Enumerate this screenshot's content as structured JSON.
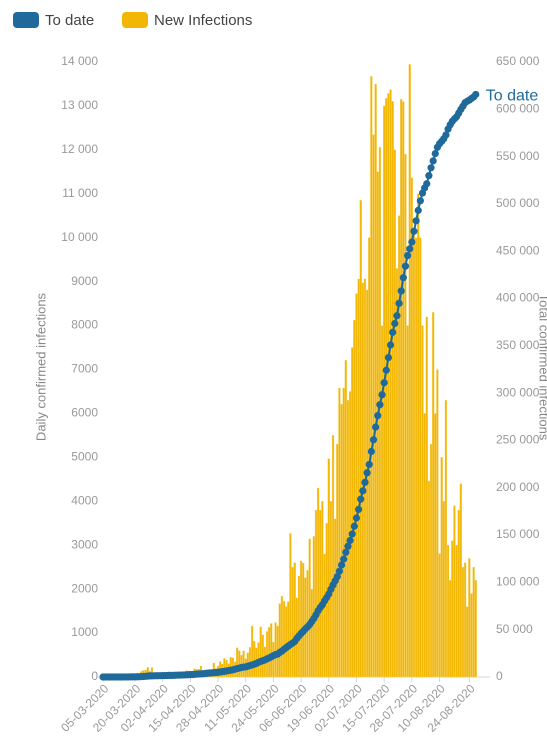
{
  "chart_data": {
    "type": "bar",
    "y_label": "Daily confirmed infections",
    "y2_label": "Total confirmed infections",
    "categories": [
      "05-03-2020",
      null,
      null,
      null,
      null,
      null,
      null,
      null,
      null,
      null,
      null,
      null,
      null,
      null,
      null,
      "20-03-2020",
      null,
      null,
      null,
      null,
      null,
      null,
      null,
      null,
      null,
      null,
      null,
      null,
      "02-04-2020",
      null,
      null,
      null,
      null,
      null,
      null,
      null,
      null,
      null,
      null,
      null,
      null,
      "15-04-2020",
      null,
      null,
      null,
      null,
      null,
      null,
      null,
      null,
      null,
      null,
      null,
      null,
      "28-04-2020",
      null,
      null,
      null,
      null,
      null,
      null,
      null,
      null,
      null,
      null,
      null,
      null,
      "11-05-2020",
      null,
      null,
      null,
      null,
      null,
      null,
      null,
      null,
      null,
      null,
      null,
      null,
      "24-05-2020",
      null,
      null,
      null,
      null,
      null,
      null,
      null,
      null,
      null,
      null,
      null,
      null,
      "06-06-2020",
      null,
      null,
      null,
      null,
      null,
      null,
      null,
      null,
      null,
      null,
      null,
      null,
      "19-06-2020",
      null,
      null,
      null,
      null,
      null,
      null,
      null,
      null,
      null,
      null,
      null,
      null,
      "02-07-2020",
      null,
      null,
      null,
      null,
      null,
      null,
      null,
      null,
      null,
      null,
      null,
      null,
      "15-07-2020",
      null,
      null,
      null,
      null,
      null,
      null,
      null,
      null,
      null,
      null,
      null,
      null,
      "28-07-2020",
      null,
      null,
      null,
      null,
      null,
      null,
      null,
      null,
      null,
      null,
      null,
      null,
      "10-08-2020",
      null,
      null,
      null,
      null,
      null,
      null,
      null,
      null,
      null,
      null,
      null,
      null,
      null,
      "24-08-2020",
      null,
      null,
      null
    ],
    "series": [
      {
        "name": "To date",
        "type": "line",
        "axis": "y2",
        "color": "#1f6a9a",
        "values": [
          1,
          1,
          2,
          3,
          7,
          7,
          13,
          17,
          24,
          38,
          51,
          62,
          85,
          116,
          150,
          202,
          240,
          274,
          402,
          554,
          709,
          927,
          1170,
          1187,
          1280,
          1326,
          1353,
          1380,
          1462,
          1505,
          1585,
          1655,
          1686,
          1749,
          1845,
          1934,
          2003,
          2028,
          2173,
          2272,
          2415,
          2506,
          2605,
          2783,
          3034,
          3158,
          3300,
          3465,
          3635,
          3953,
          4220,
          4361,
          4546,
          4793,
          4996,
          5350,
          5647,
          5951,
          6336,
          6783,
          7220,
          7572,
          8232,
          8895,
          9420,
          10015,
          10420,
          10652,
          11350,
          12074,
          12739,
          13524,
          14355,
          15515,
          16433,
          17200,
          18003,
          19137,
          20125,
          21343,
          22583,
          23615,
          24264,
          25937,
          27403,
          29240,
          30967,
          32683,
          34357,
          35812,
          37525,
          40792,
          43434,
          45973,
          48285,
          50879,
          52991,
          55421,
          58568,
          61927,
          65736,
          70038,
          73533,
          76334,
          80412,
          83890,
          87715,
          92681,
          97302,
          101590,
          106108,
          111796,
          118375,
          124590,
          131800,
          138134,
          144264,
          151209,
          159333,
          168061,
          177124,
          187977,
          196750,
          205721,
          215855,
          224665,
          238339,
          250687,
          264184,
          276242,
          287796,
          298292,
          311049,
          324221,
          337594,
          350879,
          364328,
          373628,
          381798,
          394948,
          408052,
          421996,
          434200,
          445433,
          452529,
          459761,
          471123,
          482169,
          493183,
          503290,
          511485,
          516862,
          521318,
          529877,
          538184,
          545476,
          553188,
          559859,
          563598,
          566109,
          568919,
          572865,
          579140,
          583653,
          587345,
          589886,
          592144,
          596060,
          599940,
          603338,
          607045,
          608500,
          609773,
          611450,
          613017,
          615701
        ]
      },
      {
        "name": "New Infections",
        "type": "bar",
        "color": "#f2b705",
        "values": [
          1,
          0,
          1,
          4,
          1,
          3,
          3,
          3,
          0,
          7,
          14,
          13,
          24,
          11,
          34,
          52,
          38,
          34,
          128,
          152,
          155,
          218,
          134,
          217,
          96,
          64,
          101,
          81,
          70,
          82,
          40,
          123,
          69,
          63,
          45,
          64,
          101,
          99,
          95,
          145,
          143,
          113,
          98,
          191,
          171,
          178,
          251,
          136,
          166,
          165,
          143,
          172,
          318,
          193,
          250,
          354,
          297,
          424,
          385,
          300,
          447,
          437,
          348,
          663,
          595,
          498,
          595,
          416,
          552,
          674,
          1160,
          817,
          665,
          785,
          1140,
          958,
          683,
          1037,
          1134,
          1218,
          790,
          1240,
          1160,
          1670,
          1837,
          1727,
          1605,
          1716,
          3267,
          2500,
          2600,
          1800,
          2300,
          2642,
          2594,
          2259,
          2430,
          3144,
          2000,
          3200,
          3800,
          4302,
          3800,
          4000,
          2800,
          3500,
          4966,
          4000,
          5500,
          3600,
          5300,
          6578,
          6210,
          6579,
          7210,
          6300,
          6500,
          7500,
          8124,
          8728,
          9060,
          10853,
          8971,
          9063,
          8810,
          10000,
          13674,
          12348,
          13497,
          11500,
          12058,
          8000,
          13000,
          13172,
          13285,
          13373,
          13104,
          12000,
          9300,
          10500,
          13150,
          13100,
          11900,
          8000,
          13944,
          11362,
          10107,
          10000,
          11000,
          10000,
          8000,
          6000,
          8195,
          4456,
          5300,
          8300,
          6000,
          7000,
          2810,
          5000,
          4000,
          6300,
          3000,
          2200,
          3100,
          3900,
          3000,
          3800,
          4400,
          2500,
          2600,
          1600,
          2700,
          1900,
          2500,
          2200
        ]
      }
    ],
    "ylim": [
      0,
      14000
    ],
    "yticks": [
      0,
      1000,
      2000,
      3000,
      4000,
      5000,
      6000,
      7000,
      8000,
      9000,
      {
        "value": 10000,
        "label": "10 000"
      },
      {
        "value": 11000,
        "label": "11 000"
      },
      {
        "value": 12000,
        "label": "12 000"
      },
      {
        "value": 13000,
        "label": "13 000"
      },
      {
        "value": 14000,
        "label": "14 000"
      }
    ],
    "y2lim": [
      0,
      650000
    ],
    "y2ticks": [
      0,
      {
        "value": 50000,
        "label": "50 000"
      },
      {
        "value": 100000,
        "label": "100 000"
      },
      {
        "value": 150000,
        "label": "150 000"
      },
      {
        "value": 200000,
        "label": "200 000"
      },
      {
        "value": 250000,
        "label": "250 000"
      },
      {
        "value": 300000,
        "label": "300 000"
      },
      {
        "value": 350000,
        "label": "350 000"
      },
      {
        "value": 400000,
        "label": "400 000"
      },
      {
        "value": 450000,
        "label": "450 000"
      },
      {
        "value": 500000,
        "label": "500 000"
      },
      {
        "value": 550000,
        "label": "550 000"
      },
      {
        "value": 600000,
        "label": "600 000"
      },
      {
        "value": 650000,
        "label": "650 000"
      }
    ],
    "grid": false,
    "legend": "top-left"
  }
}
